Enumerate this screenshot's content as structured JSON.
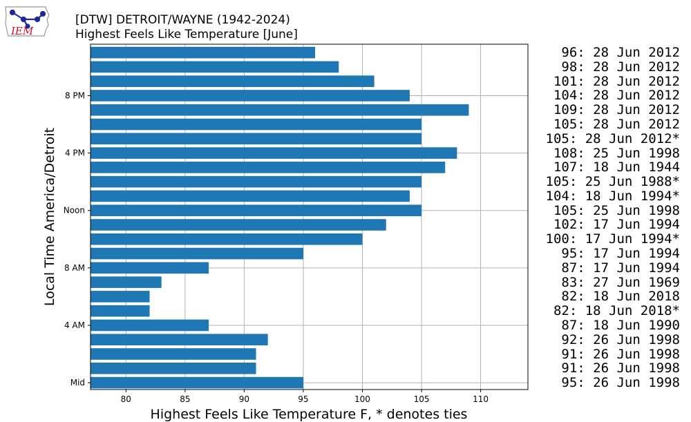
{
  "branding": {
    "logo_text": "IEM"
  },
  "chart_data": {
    "type": "bar",
    "orientation": "horizontal",
    "title": "[DTW] DETROIT/WAYNE (1942-2024)",
    "subtitle": "Highest Feels Like Temperature [June]",
    "xlabel": "Highest Feels Like Temperature F, * denotes ties",
    "ylabel": "Local Time America/Detroit",
    "xlim": [
      77,
      114
    ],
    "xticks": [
      80,
      85,
      90,
      95,
      100,
      105,
      110
    ],
    "yticks": [
      {
        "hour": 0,
        "label": "Mid"
      },
      {
        "hour": 4,
        "label": "4 AM"
      },
      {
        "hour": 8,
        "label": "8 AM"
      },
      {
        "hour": 12,
        "label": "Noon"
      },
      {
        "hour": 16,
        "label": "4 PM"
      },
      {
        "hour": 20,
        "label": "8 PM"
      }
    ],
    "grid": true,
    "bar_color": "#1f77b4",
    "hours": [
      0,
      1,
      2,
      3,
      4,
      5,
      6,
      7,
      8,
      9,
      10,
      11,
      12,
      13,
      14,
      15,
      16,
      17,
      18,
      19,
      20,
      21,
      22,
      23
    ],
    "values": [
      95,
      91,
      91,
      92,
      87,
      82,
      82,
      83,
      87,
      95,
      100,
      102,
      105,
      104,
      105,
      107,
      108,
      105,
      105,
      109,
      104,
      101,
      98,
      96
    ],
    "annotations": [
      "95: 26 Jun 1998",
      "91: 26 Jun 1998",
      "91: 26 Jun 1998",
      "92: 26 Jun 1998",
      "87: 18 Jun 1990",
      "82: 18 Jun 2018*",
      "82: 18 Jun 2018",
      "83: 27 Jun 1969",
      "87: 17 Jun 1994",
      "95: 17 Jun 1994",
      "100: 17 Jun 1994*",
      "102: 17 Jun 1994",
      "105: 25 Jun 1998",
      "104: 18 Jun 1994*",
      "105: 25 Jun 1988*",
      "107: 18 Jun 1944",
      "108: 25 Jun 1998",
      "105: 28 Jun 2012*",
      "105: 28 Jun 2012",
      "109: 28 Jun 2012",
      "104: 28 Jun 2012",
      "101: 28 Jun 2012",
      "98: 28 Jun 2012",
      "96: 28 Jun 2012"
    ]
  }
}
